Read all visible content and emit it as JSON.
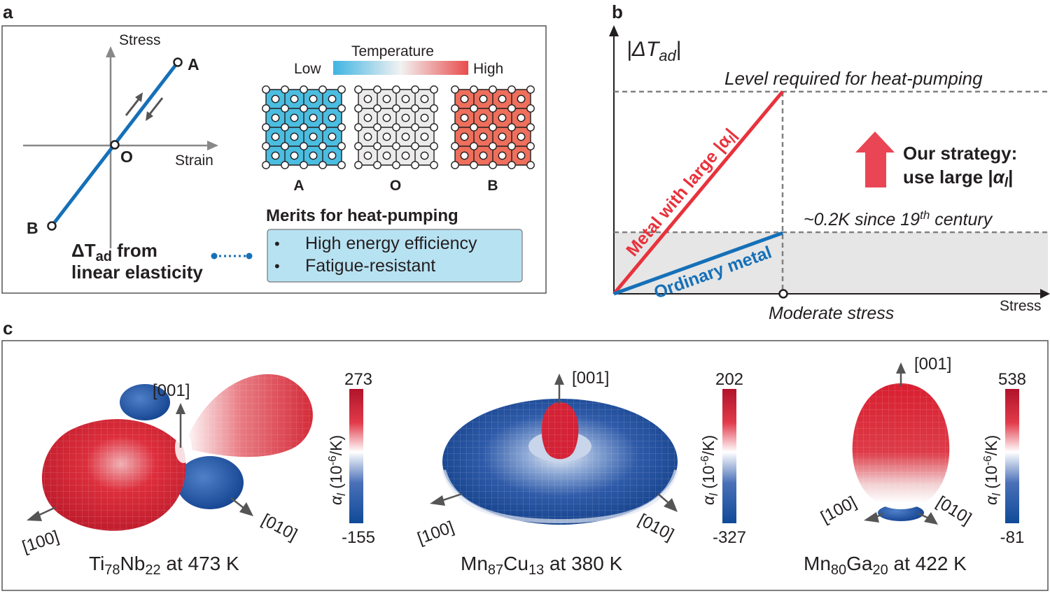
{
  "panel_a": {
    "letter": "a",
    "axis_stress": "Stress",
    "axis_strain": "Strain",
    "point_a": "A",
    "point_o": "O",
    "point_b": "B",
    "temperature_label": "Temperature",
    "temp_low": "Low",
    "temp_high": "High",
    "lattice_labels": [
      "A",
      "O",
      "B"
    ],
    "lattice_colors": [
      "#4bbde0",
      "#ebebeb",
      "#ee6f5c"
    ],
    "note_line1_prefix": "ΔT",
    "note_line1_sub": "ad",
    "note_line1_suffix": " from",
    "note_line2": "linear elasticity",
    "merits_title": "Merits for heat-pumping",
    "merits": [
      "High energy efficiency",
      "Fatigue-resistant"
    ],
    "line_color": "#1570b8"
  },
  "panel_b": {
    "letter": "b",
    "ylabel_prefix": "|ΔT",
    "ylabel_sub": "ad",
    "ylabel_suffix": "|",
    "xlabel": "Stress",
    "level_label": "Level required for heat-pumping",
    "ordinary_level_prefix": "~0.2K since 19",
    "ordinary_level_sup": "th",
    "ordinary_level_suffix": " century",
    "moderate_stress": "Moderate stress",
    "large_line_label": "Metal with large |α",
    "large_line_sub": "l",
    "large_line_end": "|",
    "ordinary_line_label": "Ordinary metal",
    "strategy_line1": "Our strategy:",
    "strategy_line2_prefix": "use large |",
    "strategy_line2_alpha": "α",
    "strategy_line2_sub": "l",
    "strategy_line2_end": "|",
    "red": "#e8323c",
    "blue": "#1570b8"
  },
  "panel_c": {
    "letter": "c",
    "colorbar_label_alpha": "α",
    "colorbar_label_sub": "l",
    "colorbar_label_unit": " (10",
    "colorbar_label_exp": "-6",
    "colorbar_label_tail": "/K)",
    "materials": [
      {
        "el1": "Ti",
        "n1": "78",
        "el2": "Nb",
        "n2": "22",
        "temp": " at 473 K",
        "max": "273",
        "min": "-155",
        "dir_001": "[001]",
        "dir_100": "[100]",
        "dir_010": "[010]"
      },
      {
        "el1": "Mn",
        "n1": "87",
        "el2": "Cu",
        "n2": "13",
        "temp": " at 380 K",
        "max": "202",
        "min": "-327",
        "dir_001": "[001]",
        "dir_100": "[100]",
        "dir_010": "[010]"
      },
      {
        "el1": "Mn",
        "n1": "80",
        "el2": "Ga",
        "n2": "20",
        "temp": " at 422 K",
        "max": "538",
        "min": "-81",
        "dir_001": "[001]",
        "dir_100": "[100]",
        "dir_010": "[010]"
      }
    ]
  }
}
